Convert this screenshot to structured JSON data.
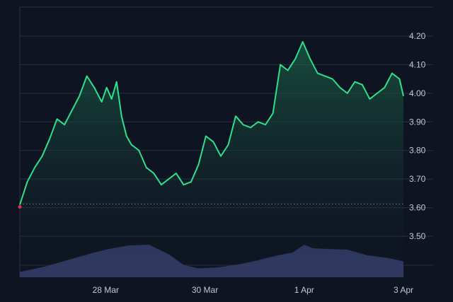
{
  "colors": {
    "background": "#0f1422",
    "grid": "#2a3142",
    "price_line": "#2ee08a",
    "price_fill_top": "#1c6b4c",
    "volume_fill": "#3b4474",
    "baseline_dotted": "#d7d9de",
    "start_marker": "#e0323c",
    "tick_text": "#c3c8d3"
  },
  "chart_data": {
    "type": "area",
    "title": "",
    "xlabel": "",
    "ylabel": "",
    "ylim": [
      3.4,
      4.25
    ],
    "grid": true,
    "y_axis_position": "right",
    "y_ticks": [
      "4.20",
      "4.10",
      "4.00",
      "3.90",
      "3.80",
      "3.70",
      "3.60",
      "3.50"
    ],
    "y_tick_values": [
      4.2,
      4.1,
      4.0,
      3.9,
      3.8,
      3.7,
      3.6,
      3.5
    ],
    "x_ticks": [
      "28 Mar",
      "30 Mar",
      "1 Apr",
      "3 Apr"
    ],
    "x_tick_days": [
      1.73,
      3.73,
      5.73,
      7.73
    ],
    "x_range_days": [
      0,
      7.73
    ],
    "baseline_value": 3.613,
    "series": [
      {
        "kind": "price",
        "x": [
          0.0,
          0.15,
          0.3,
          0.45,
          0.6,
          0.75,
          0.9,
          1.05,
          1.2,
          1.35,
          1.5,
          1.65,
          1.75,
          1.85,
          1.95,
          2.05,
          2.15,
          2.25,
          2.4,
          2.55,
          2.7,
          2.85,
          3.0,
          3.15,
          3.3,
          3.45,
          3.6,
          3.75,
          3.9,
          4.05,
          4.2,
          4.35,
          4.5,
          4.65,
          4.8,
          4.95,
          5.1,
          5.25,
          5.4,
          5.55,
          5.7,
          5.85,
          6.0,
          6.15,
          6.3,
          6.45,
          6.6,
          6.75,
          6.9,
          7.05,
          7.2,
          7.35,
          7.5,
          7.65,
          7.73
        ],
        "values": [
          3.61,
          3.69,
          3.74,
          3.78,
          3.84,
          3.91,
          3.89,
          3.94,
          3.99,
          4.06,
          4.02,
          3.97,
          4.02,
          3.98,
          4.04,
          3.92,
          3.85,
          3.82,
          3.8,
          3.74,
          3.72,
          3.68,
          3.7,
          3.72,
          3.68,
          3.69,
          3.75,
          3.85,
          3.83,
          3.78,
          3.82,
          3.92,
          3.89,
          3.88,
          3.9,
          3.89,
          3.93,
          4.1,
          4.08,
          4.12,
          4.18,
          4.12,
          4.07,
          4.06,
          4.05,
          4.02,
          4.0,
          4.04,
          4.03,
          3.98,
          4.0,
          4.02,
          4.07,
          4.05,
          3.99
        ]
      },
      {
        "kind": "volume",
        "x": [
          0.0,
          0.5,
          1.0,
          1.5,
          1.8,
          2.2,
          2.6,
          3.0,
          3.3,
          3.6,
          4.0,
          4.4,
          4.8,
          5.2,
          5.5,
          5.73,
          5.9,
          6.2,
          6.6,
          7.0,
          7.4,
          7.73
        ],
        "values": [
          0.15,
          0.3,
          0.5,
          0.7,
          0.8,
          0.9,
          0.92,
          0.65,
          0.35,
          0.25,
          0.28,
          0.36,
          0.48,
          0.62,
          0.7,
          0.92,
          0.82,
          0.8,
          0.78,
          0.62,
          0.55,
          0.45
        ]
      }
    ]
  }
}
